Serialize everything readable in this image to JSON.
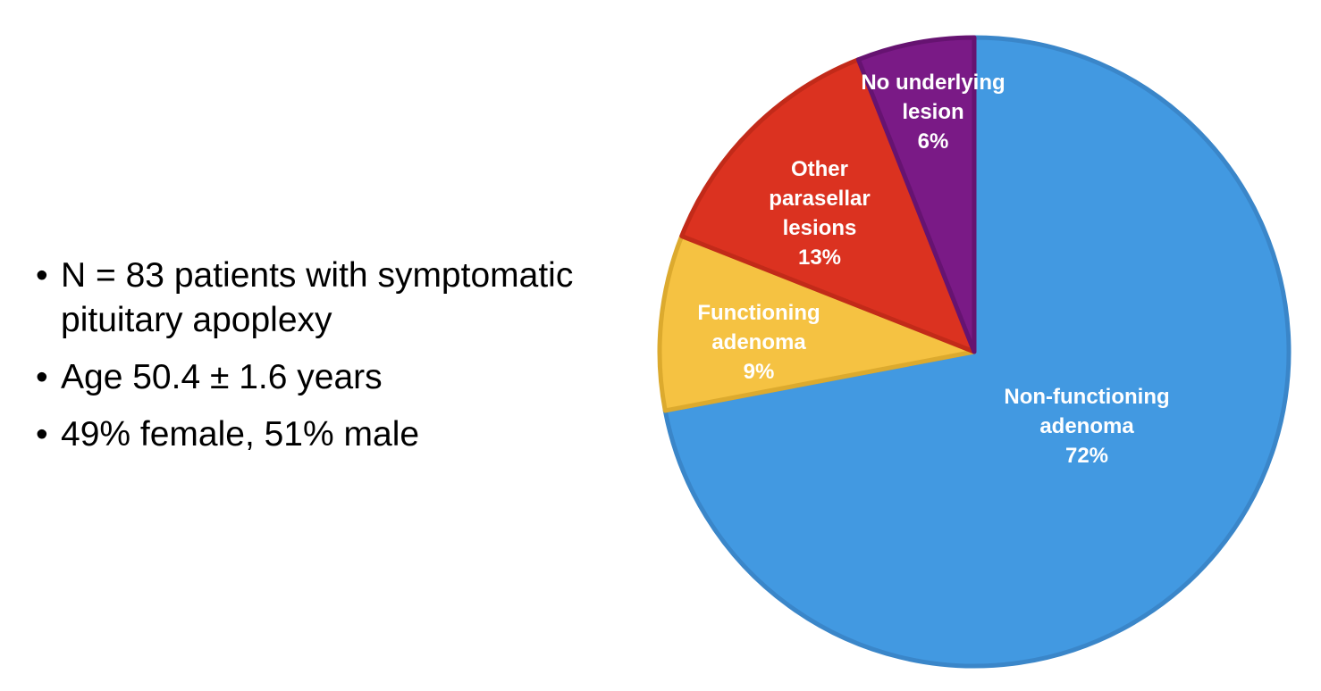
{
  "bullets": [
    "N = 83 patients with symptomatic pituitary apoplexy",
    "Age 50.4 ± 1.6 years",
    "49% female, 51% male"
  ],
  "chart_data": {
    "type": "pie",
    "start_angle_deg": 0,
    "direction": "clockwise",
    "slices": [
      {
        "name": "Non-functioning adenoma",
        "label_lines": [
          "Non-functioning",
          "adenoma",
          "72%"
        ],
        "value": 72,
        "color": "#4299e1",
        "edge": "#3a86c9"
      },
      {
        "name": "Functioning adenoma",
        "label_lines": [
          "Functioning",
          "adenoma",
          "9%"
        ],
        "value": 9,
        "color": "#f5c242",
        "edge": "#dcaa2e"
      },
      {
        "name": "Other parasellar lesions",
        "label_lines": [
          "Other",
          "parasellar",
          "lesions",
          "13%"
        ],
        "value": 13,
        "color": "#db3220",
        "edge": "#c22a19"
      },
      {
        "name": "No underlying lesion",
        "label_lines": [
          "No underlying",
          "lesion",
          "6%"
        ],
        "value": 6,
        "color": "#7a1a86",
        "edge": "#661371"
      }
    ]
  }
}
